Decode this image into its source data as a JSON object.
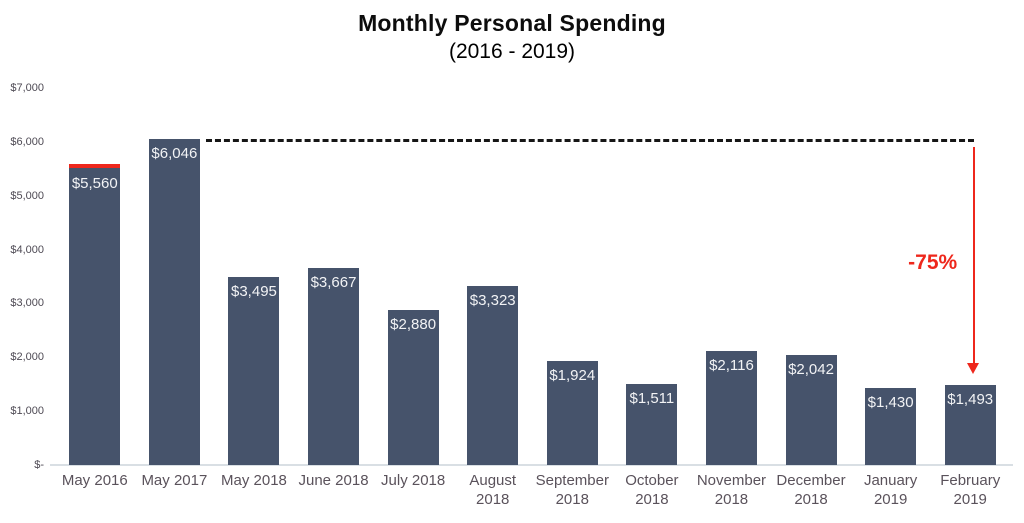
{
  "title": "Monthly Personal Spending",
  "subtitle": "(2016 - 2019)",
  "chart_data": {
    "type": "bar",
    "categories": [
      "May 2016",
      "May 2017",
      "May 2018",
      "June 2018",
      "July 2018",
      "August\n2018",
      "September\n2018",
      "October\n2018",
      "November\n2018",
      "December\n2018",
      "January\n2019",
      "February\n2019"
    ],
    "values": [
      5560,
      6046,
      3495,
      3667,
      2880,
      3323,
      1924,
      1511,
      2116,
      2042,
      1430,
      1493
    ],
    "value_labels": [
      "$5,560",
      "$6,046",
      "$3,495",
      "$3,667",
      "$2,880",
      "$3,323",
      "$1,924",
      "$1,511",
      "$2,116",
      "$2,042",
      "$1,430",
      "$1,493"
    ],
    "y_ticks": [
      {
        "label": "$7,000",
        "value": 7000
      },
      {
        "label": "$6,000",
        "value": 6000
      },
      {
        "label": "$5,000",
        "value": 5000
      },
      {
        "label": "$4,000",
        "value": 4000
      },
      {
        "label": "$3,000",
        "value": 3000
      },
      {
        "label": "$2,000",
        "value": 2000
      },
      {
        "label": "$1,000",
        "value": 1000
      },
      {
        "label": "$-",
        "value": 0
      }
    ],
    "ylim": [
      0,
      7000
    ],
    "grid": false,
    "legend": false,
    "bar_color": "#46536b",
    "value_label_color": "#f2f3f5",
    "annotation": {
      "percent_label": "-75%",
      "color": "#ee271c",
      "reference_bar_index": 1,
      "target_bar_index": 11,
      "accent_bar_index": 0,
      "dotted_line_color": "#161616"
    }
  }
}
